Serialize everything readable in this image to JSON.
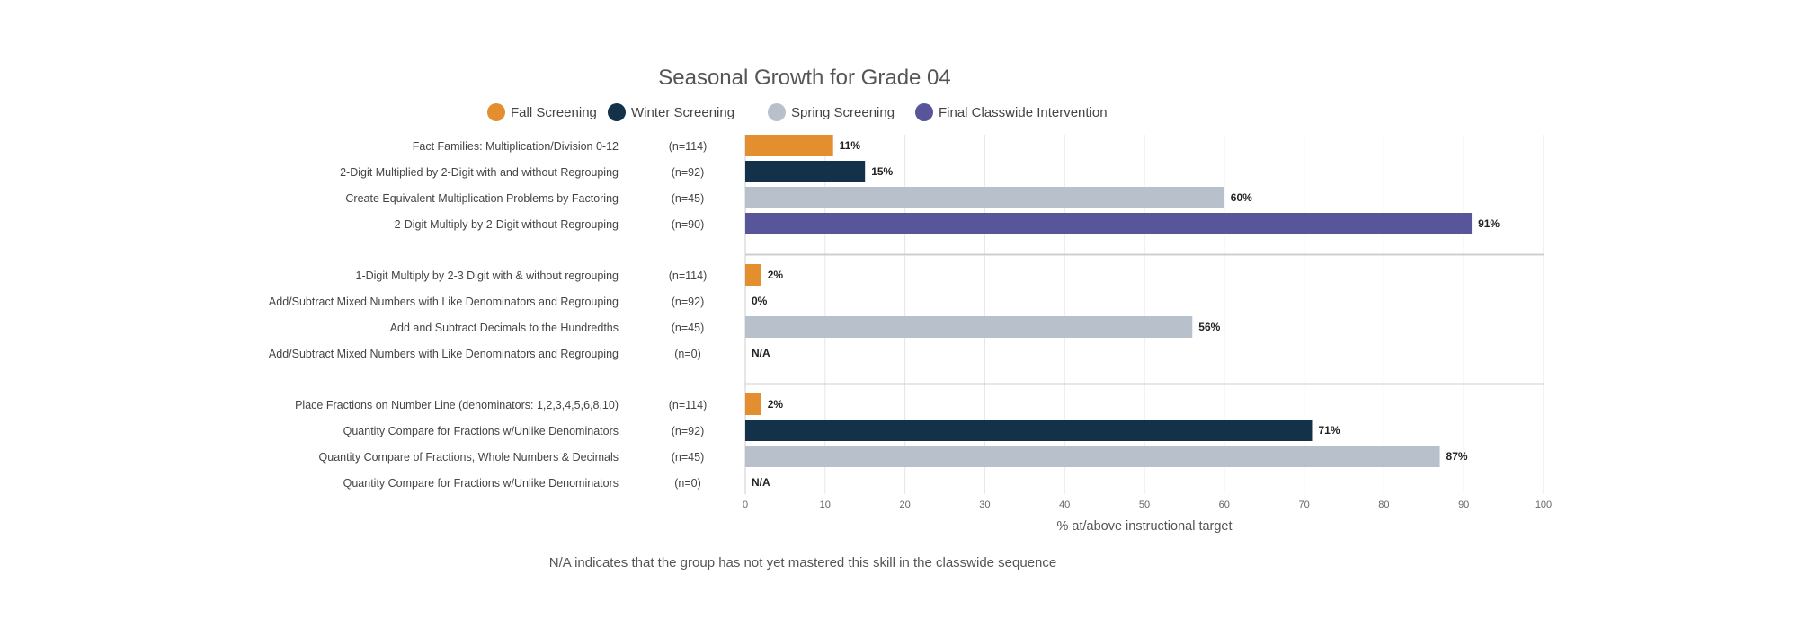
{
  "chart_data": {
    "type": "bar",
    "orientation": "horizontal",
    "title": "Seasonal Growth for Grade 04",
    "xlabel": "% at/above instructional target",
    "xlim": [
      0,
      100
    ],
    "xticks": [
      "0",
      "10",
      "20",
      "30",
      "40",
      "50",
      "60",
      "70",
      "80",
      "90",
      "100"
    ],
    "grid": true,
    "legend_position": "top",
    "legend": [
      {
        "key": "fall",
        "name": "Fall Screening",
        "color": "#e38f2f"
      },
      {
        "key": "winter",
        "name": "Winter Screening",
        "color": "#14314a"
      },
      {
        "key": "spring",
        "name": "Spring Screening",
        "color": "#b8c0cb"
      },
      {
        "key": "final",
        "name": "Final Classwide Intervention",
        "color": "#58559a"
      }
    ],
    "groups": [
      {
        "rows": [
          {
            "skill": "Fact Families: Multiplication/Division 0-12",
            "n": "(n=114)",
            "series": "fall",
            "value": 11,
            "label": "11%"
          },
          {
            "skill": "2-Digit Multiplied by 2-Digit with and without Regrouping",
            "n": "(n=92)",
            "series": "winter",
            "value": 15,
            "label": "15%"
          },
          {
            "skill": "Create Equivalent Multiplication Problems by Factoring",
            "n": "(n=45)",
            "series": "spring",
            "value": 60,
            "label": "60%"
          },
          {
            "skill": "2-Digit Multiply by 2-Digit without Regrouping",
            "n": "(n=90)",
            "series": "final",
            "value": 91,
            "label": "91%"
          }
        ]
      },
      {
        "rows": [
          {
            "skill": "1-Digit Multiply by 2-3 Digit with & without regrouping",
            "n": "(n=114)",
            "series": "fall",
            "value": 2,
            "label": "2%"
          },
          {
            "skill": "Add/Subtract Mixed Numbers with Like Denominators and Regrouping",
            "n": "(n=92)",
            "series": "winter",
            "value": 0,
            "label": "0%"
          },
          {
            "skill": "Add and Subtract Decimals to the Hundredths",
            "n": "(n=45)",
            "series": "spring",
            "value": 56,
            "label": "56%"
          },
          {
            "skill": "Add/Subtract Mixed Numbers with Like Denominators and Regrouping",
            "n": "(n=0)",
            "series": "final",
            "value": null,
            "label": "N/A"
          }
        ]
      },
      {
        "rows": [
          {
            "skill": "Place Fractions on Number Line (denominators: 1,2,3,4,5,6,8,10)",
            "n": "(n=114)",
            "series": "fall",
            "value": 2,
            "label": "2%"
          },
          {
            "skill": "Quantity Compare for Fractions w/Unlike Denominators",
            "n": "(n=92)",
            "series": "winter",
            "value": 71,
            "label": "71%"
          },
          {
            "skill": "Quantity Compare of Fractions, Whole Numbers & Decimals",
            "n": "(n=45)",
            "series": "spring",
            "value": 87,
            "label": "87%"
          },
          {
            "skill": "Quantity Compare for Fractions w/Unlike Denominators",
            "n": "(n=0)",
            "series": "final",
            "value": null,
            "label": "N/A"
          }
        ]
      }
    ],
    "footnote": "N/A indicates that the group has not yet mastered this skill in the classwide sequence"
  }
}
